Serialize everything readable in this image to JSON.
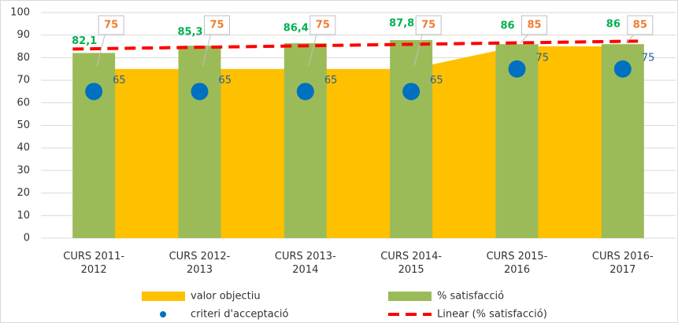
{
  "chart_data": {
    "type": "combo",
    "categories": [
      "CURS 2011-2012",
      "CURS 2012-2013",
      "CURS 2013-2014",
      "CURS 2014-2015",
      "CURS 2015-2016",
      "CURS 2016-2017"
    ],
    "series": [
      {
        "name": "valor objectiu",
        "type": "area",
        "color": "#ffc000",
        "values": [
          75,
          75,
          75,
          75,
          85,
          85
        ]
      },
      {
        "name": "% satisfacció",
        "type": "bar",
        "color": "#9bbb59",
        "values": [
          82.1,
          85.3,
          86.4,
          87.8,
          86,
          86
        ],
        "value_labels": [
          "82,1",
          "85,3",
          "86,4",
          "87,8",
          "86",
          "86"
        ]
      },
      {
        "name": "criteri d'acceptació",
        "type": "scatter",
        "color": "#0070c0",
        "values": [
          65,
          65,
          65,
          65,
          75,
          75
        ]
      }
    ],
    "trendline": {
      "name": "Linear (% satisfacció)",
      "type": "linear",
      "color": "#ff0000"
    },
    "ylim": [
      0,
      100
    ],
    "yticks": [
      0,
      10,
      20,
      30,
      40,
      50,
      60,
      70,
      80,
      90,
      100
    ],
    "grid": true
  }
}
